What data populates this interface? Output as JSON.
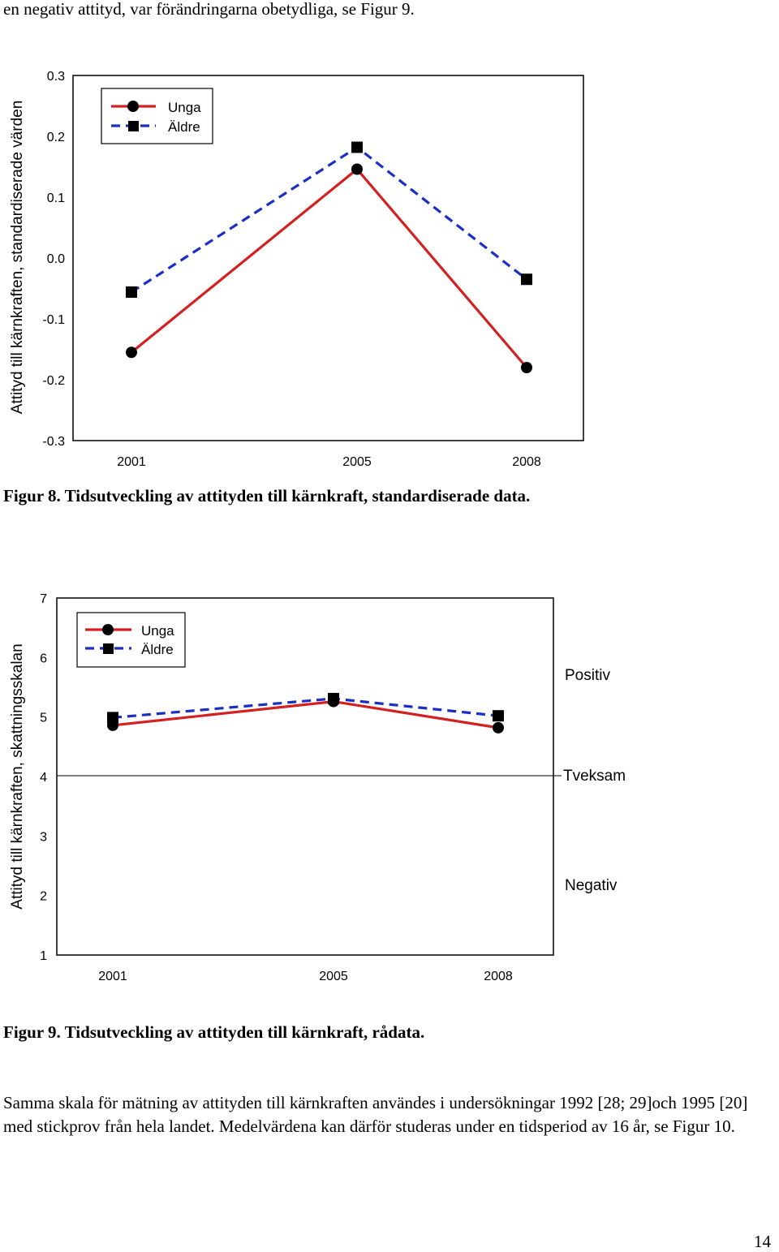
{
  "intro_line": "en negativ attityd, var förändringarna obetydliga, se Figur 9.",
  "figure8": {
    "caption": "Figur 8. Tidsutveckling av attityden till kärnkraft, standardiserade data.",
    "ylabel": "Attityd till kärnkraften, standardiserade värden",
    "yticks": [
      "-0.3",
      "-0.2",
      "-0.1",
      "0.0",
      "0.1",
      "0.2",
      "0.3"
    ],
    "xticks": [
      "2001",
      "2005",
      "2008"
    ],
    "legend": [
      "Unga",
      "Äldre"
    ]
  },
  "figure9": {
    "caption": "Figur 9. Tidsutveckling av attityden till kärnkraft, rådata.",
    "ylabel": "Attityd till kärnkraften, skattningsskalan",
    "yticks": [
      "1",
      "2",
      "3",
      "4",
      "5",
      "6",
      "7"
    ],
    "xticks": [
      "2001",
      "2005",
      "2008"
    ],
    "legend": [
      "Unga",
      "Äldre"
    ],
    "annotations": {
      "positive": "Positiv",
      "neutral": "Tveksam",
      "negative": "Negativ"
    }
  },
  "body_text": "Samma skala för mätning av attityden till kärnkraften användes i undersökningar 1992 [28; 29]och 1995 [20] med stickprov från hela landet. Medelvärdena kan därför studeras under en tidsperiod av 16 år, se Figur 10.",
  "page_number": "14",
  "colors": {
    "unga": "#d42020",
    "aldre": "#1a2fc4",
    "axis": "#000000"
  },
  "chart_data": [
    {
      "type": "line",
      "title": "Figur 8. Tidsutveckling av attityden till kärnkraft, standardiserade data.",
      "xlabel": "",
      "ylabel": "Attityd till kärnkraften, standardiserade värden",
      "categories": [
        "2001",
        "2005",
        "2008"
      ],
      "ylim": [
        -0.3,
        0.3
      ],
      "legend_position": "top-left",
      "grid": false,
      "series": [
        {
          "name": "Unga",
          "values": [
            -0.155,
            0.146,
            -0.18
          ],
          "marker": "circle",
          "line": "solid"
        },
        {
          "name": "Äldre",
          "values": [
            -0.056,
            0.182,
            -0.035
          ],
          "marker": "square",
          "line": "dashed"
        }
      ]
    },
    {
      "type": "line",
      "title": "Figur 9. Tidsutveckling av attityden till kärnkraft, rådata.",
      "xlabel": "",
      "ylabel": "Attityd till kärnkraften, skattningsskalan",
      "categories": [
        "2001",
        "2005",
        "2008"
      ],
      "ylim": [
        1,
        7
      ],
      "legend_position": "top-left",
      "grid": false,
      "reference_line": 4,
      "series": [
        {
          "name": "Unga",
          "values": [
            4.86,
            5.26,
            4.82
          ],
          "marker": "circle",
          "line": "solid"
        },
        {
          "name": "Äldre",
          "values": [
            4.99,
            5.31,
            5.02
          ],
          "marker": "square",
          "line": "dashed"
        }
      ]
    }
  ]
}
